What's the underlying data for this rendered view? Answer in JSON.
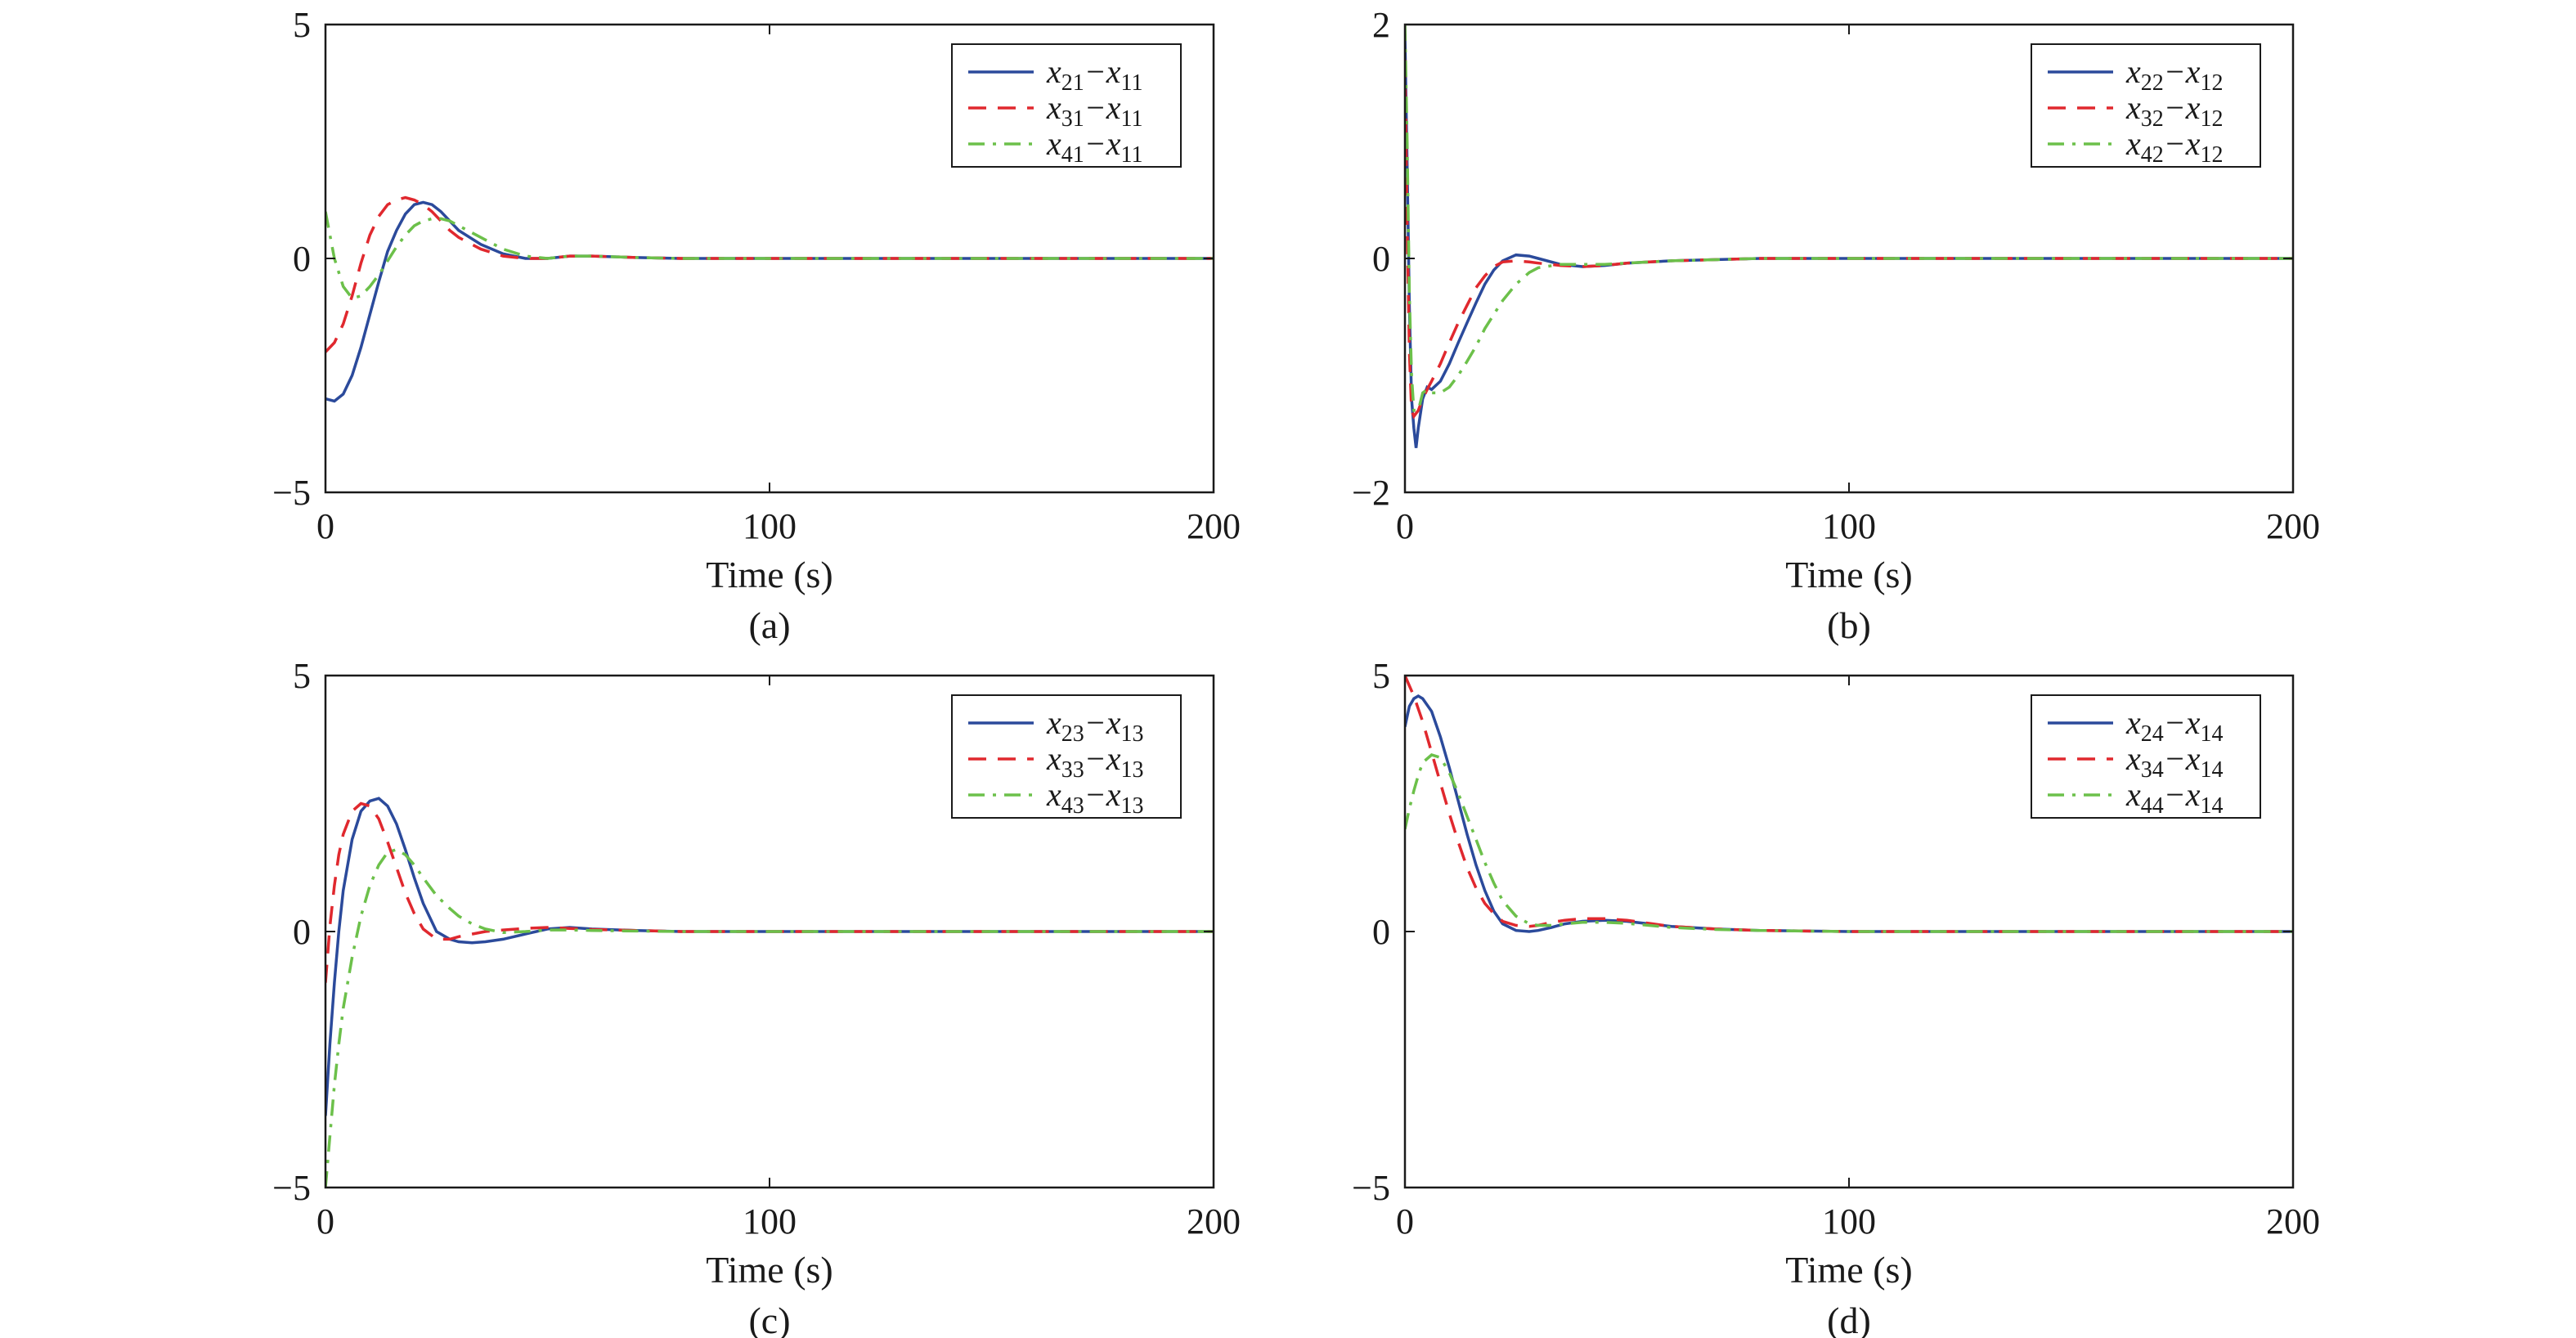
{
  "chart_data": [
    {
      "type": "line",
      "caption": "(a)",
      "xlabel": "Time (s)",
      "ylabel": "",
      "xlim": [
        0,
        200
      ],
      "ylim": [
        -5,
        5
      ],
      "xticks": [
        "0",
        "100",
        "200"
      ],
      "yticks": [
        "−5",
        "0",
        "5"
      ],
      "legend_position": "top-right",
      "grid": false,
      "series": [
        {
          "name": "x21−x11",
          "name_parts": [
            "x",
            "21",
            "−x",
            "11"
          ],
          "color": "#2b4a9b",
          "dash": "solid",
          "x": [
            0,
            2,
            4,
            6,
            8,
            10,
            12,
            14,
            16,
            18,
            20,
            22,
            24,
            26,
            28,
            30,
            35,
            40,
            45,
            50,
            55,
            60,
            70,
            80,
            100,
            150,
            200
          ],
          "y": [
            -3.0,
            -3.05,
            -2.9,
            -2.5,
            -1.9,
            -1.2,
            -0.5,
            0.15,
            0.6,
            0.95,
            1.15,
            1.2,
            1.15,
            1.0,
            0.8,
            0.6,
            0.3,
            0.1,
            0.0,
            0.0,
            0.05,
            0.05,
            0.02,
            0.0,
            0.0,
            0.0,
            0.0
          ]
        },
        {
          "name": "x31−x11",
          "name_parts": [
            "x",
            "31",
            "−x",
            "11"
          ],
          "color": "#e0282e",
          "dash": "dashed",
          "x": [
            0,
            2,
            4,
            6,
            8,
            10,
            12,
            14,
            16,
            18,
            20,
            22,
            24,
            26,
            28,
            30,
            35,
            40,
            45,
            50,
            55,
            60,
            70,
            80,
            100,
            150,
            200
          ],
          "y": [
            -2.0,
            -1.8,
            -1.4,
            -0.8,
            -0.1,
            0.5,
            0.9,
            1.15,
            1.25,
            1.3,
            1.25,
            1.15,
            1.0,
            0.8,
            0.6,
            0.45,
            0.2,
            0.05,
            0.0,
            0.0,
            0.05,
            0.05,
            0.02,
            0.0,
            0.0,
            0.0,
            0.0
          ]
        },
        {
          "name": "x41−x11",
          "name_parts": [
            "x",
            "41",
            "−x",
            "11"
          ],
          "color": "#6cc04a",
          "dash": "dashdot",
          "x": [
            0,
            2,
            4,
            6,
            8,
            10,
            12,
            14,
            16,
            18,
            20,
            22,
            24,
            26,
            28,
            30,
            35,
            40,
            45,
            50,
            55,
            60,
            70,
            80,
            100,
            150,
            200
          ],
          "y": [
            1.0,
            0.0,
            -0.6,
            -0.85,
            -0.8,
            -0.6,
            -0.35,
            -0.05,
            0.25,
            0.5,
            0.7,
            0.8,
            0.85,
            0.85,
            0.8,
            0.7,
            0.45,
            0.2,
            0.05,
            0.0,
            0.05,
            0.05,
            0.02,
            0.0,
            0.0,
            0.0,
            0.0
          ]
        }
      ]
    },
    {
      "type": "line",
      "caption": "(b)",
      "xlabel": "Time (s)",
      "ylabel": "",
      "xlim": [
        0,
        200
      ],
      "ylim": [
        -2,
        2
      ],
      "xticks": [
        "0",
        "100",
        "200"
      ],
      "yticks": [
        "−2",
        "0",
        "2"
      ],
      "legend_position": "top-right",
      "grid": false,
      "series": [
        {
          "name": "x22−x12",
          "name_parts": [
            "x",
            "22",
            "−x",
            "12"
          ],
          "color": "#2b4a9b",
          "dash": "solid",
          "x": [
            0,
            0.5,
            1,
            1.5,
            2,
            2.5,
            3,
            4,
            5,
            6,
            8,
            10,
            12,
            14,
            16,
            18,
            20,
            22,
            25,
            28,
            30,
            35,
            40,
            45,
            50,
            60,
            80,
            100,
            150,
            200
          ],
          "y": [
            1.9,
            0.8,
            -0.4,
            -1.2,
            -1.45,
            -1.62,
            -1.45,
            -1.2,
            -1.1,
            -1.12,
            -1.05,
            -0.9,
            -0.72,
            -0.55,
            -0.38,
            -0.22,
            -0.1,
            -0.02,
            0.03,
            0.02,
            0.0,
            -0.05,
            -0.07,
            -0.06,
            -0.04,
            -0.02,
            0.0,
            0.0,
            0.0,
            0.0
          ]
        },
        {
          "name": "x32−x12",
          "name_parts": [
            "x",
            "32",
            "−x",
            "12"
          ],
          "color": "#e0282e",
          "dash": "dashed",
          "x": [
            0,
            0.5,
            1,
            1.5,
            2,
            3,
            4,
            5,
            6,
            8,
            10,
            12,
            14,
            16,
            18,
            20,
            22,
            25,
            28,
            30,
            35,
            40,
            45,
            50,
            60,
            80,
            100,
            150,
            200
          ],
          "y": [
            1.7,
            0.3,
            -0.8,
            -1.3,
            -1.35,
            -1.3,
            -1.2,
            -1.12,
            -1.05,
            -0.9,
            -0.72,
            -0.55,
            -0.4,
            -0.25,
            -0.15,
            -0.07,
            -0.03,
            -0.02,
            -0.03,
            -0.04,
            -0.06,
            -0.07,
            -0.06,
            -0.04,
            -0.02,
            0.0,
            0.0,
            0.0,
            0.0
          ]
        },
        {
          "name": "x42−x12",
          "name_parts": [
            "x",
            "42",
            "−x",
            "12"
          ],
          "color": "#6cc04a",
          "dash": "dashdot",
          "x": [
            0,
            0.5,
            1,
            1.5,
            2,
            3,
            4,
            5,
            6,
            8,
            10,
            12,
            14,
            16,
            18,
            20,
            22,
            25,
            28,
            30,
            35,
            40,
            45,
            50,
            60,
            80,
            100,
            150,
            200
          ],
          "y": [
            2.0,
            1.0,
            -0.3,
            -1.0,
            -1.3,
            -1.3,
            -1.15,
            -1.12,
            -1.15,
            -1.15,
            -1.1,
            -1.0,
            -0.88,
            -0.75,
            -0.6,
            -0.48,
            -0.36,
            -0.22,
            -0.12,
            -0.08,
            -0.05,
            -0.05,
            -0.05,
            -0.04,
            -0.02,
            0.0,
            0.0,
            0.0,
            0.0
          ]
        }
      ]
    },
    {
      "type": "line",
      "caption": "(c)",
      "xlabel": "Time (s)",
      "ylabel": "",
      "xlim": [
        0,
        200
      ],
      "ylim": [
        -5,
        5
      ],
      "xticks": [
        "0",
        "100",
        "200"
      ],
      "yticks": [
        "−5",
        "0",
        "5"
      ],
      "legend_position": "top-right",
      "grid": false,
      "series": [
        {
          "name": "x23−x13",
          "name_parts": [
            "x",
            "23",
            "−x",
            "13"
          ],
          "color": "#2b4a9b",
          "dash": "solid",
          "x": [
            0,
            1,
            2,
            3,
            4,
            6,
            8,
            10,
            12,
            14,
            16,
            18,
            20,
            22,
            25,
            28,
            30,
            33,
            36,
            40,
            45,
            50,
            55,
            60,
            70,
            80,
            100,
            150,
            200
          ],
          "y": [
            -3.6,
            -2.2,
            -1.0,
            0.0,
            0.8,
            1.8,
            2.35,
            2.55,
            2.6,
            2.45,
            2.1,
            1.6,
            1.05,
            0.55,
            0.0,
            -0.15,
            -0.2,
            -0.22,
            -0.2,
            -0.15,
            -0.05,
            0.05,
            0.08,
            0.05,
            0.02,
            0.0,
            0.0,
            0.0,
            0.0
          ]
        },
        {
          "name": "x33−x13",
          "name_parts": [
            "x",
            "33",
            "−x",
            "13"
          ],
          "color": "#e0282e",
          "dash": "dashed",
          "x": [
            0,
            1,
            2,
            3,
            4,
            6,
            8,
            10,
            12,
            14,
            16,
            18,
            20,
            22,
            25,
            28,
            30,
            33,
            36,
            40,
            45,
            50,
            55,
            60,
            70,
            80,
            100,
            150,
            200
          ],
          "y": [
            -1.0,
            0.1,
            0.9,
            1.5,
            1.9,
            2.35,
            2.5,
            2.45,
            2.2,
            1.75,
            1.25,
            0.75,
            0.35,
            0.05,
            -0.15,
            -0.15,
            -0.1,
            -0.05,
            0.0,
            0.03,
            0.06,
            0.08,
            0.06,
            0.04,
            0.02,
            0.0,
            0.0,
            0.0,
            0.0
          ]
        },
        {
          "name": "x43−x13",
          "name_parts": [
            "x",
            "43",
            "−x",
            "13"
          ],
          "color": "#6cc04a",
          "dash": "dashdot",
          "x": [
            0,
            1,
            2,
            3,
            4,
            6,
            8,
            10,
            12,
            14,
            16,
            18,
            20,
            22,
            25,
            28,
            30,
            33,
            36,
            40,
            45,
            50,
            55,
            60,
            70,
            80,
            100,
            150,
            200
          ],
          "y": [
            -5.0,
            -4.0,
            -3.0,
            -2.2,
            -1.5,
            -0.5,
            0.3,
            0.9,
            1.3,
            1.55,
            1.6,
            1.5,
            1.3,
            1.05,
            0.7,
            0.45,
            0.3,
            0.15,
            0.05,
            -0.02,
            0.0,
            0.03,
            0.03,
            0.02,
            0.01,
            0.0,
            0.0,
            0.0,
            0.0
          ]
        }
      ]
    },
    {
      "type": "line",
      "caption": "(d)",
      "xlabel": "Time (s)",
      "ylabel": "",
      "xlim": [
        0,
        200
      ],
      "ylim": [
        -5,
        5
      ],
      "xticks": [
        "0",
        "100",
        "200"
      ],
      "yticks": [
        "−5",
        "0",
        "5"
      ],
      "legend_position": "top-right",
      "grid": false,
      "series": [
        {
          "name": "x24−x14",
          "name_parts": [
            "x",
            "24",
            "−x",
            "14"
          ],
          "color": "#2b4a9b",
          "dash": "solid",
          "x": [
            0,
            1,
            2,
            3,
            4,
            6,
            8,
            10,
            12,
            14,
            16,
            18,
            20,
            22,
            25,
            28,
            30,
            33,
            36,
            40,
            45,
            50,
            55,
            60,
            70,
            80,
            100,
            150,
            200
          ],
          "y": [
            4.0,
            4.4,
            4.55,
            4.6,
            4.55,
            4.3,
            3.8,
            3.2,
            2.55,
            1.9,
            1.3,
            0.8,
            0.4,
            0.15,
            0.02,
            0.0,
            0.02,
            0.08,
            0.15,
            0.2,
            0.22,
            0.2,
            0.15,
            0.1,
            0.05,
            0.02,
            0.0,
            0.0,
            0.0
          ]
        },
        {
          "name": "x34−x14",
          "name_parts": [
            "x",
            "34",
            "−x",
            "14"
          ],
          "color": "#e0282e",
          "dash": "dashed",
          "x": [
            0,
            1,
            2,
            3,
            4,
            6,
            8,
            10,
            12,
            14,
            16,
            18,
            20,
            22,
            25,
            28,
            30,
            33,
            36,
            40,
            45,
            50,
            55,
            60,
            70,
            80,
            100,
            150,
            200
          ],
          "y": [
            5.0,
            4.8,
            4.6,
            4.35,
            4.1,
            3.5,
            2.9,
            2.3,
            1.75,
            1.25,
            0.85,
            0.55,
            0.35,
            0.2,
            0.12,
            0.1,
            0.12,
            0.18,
            0.22,
            0.25,
            0.25,
            0.22,
            0.16,
            0.1,
            0.05,
            0.02,
            0.0,
            0.0,
            0.0
          ]
        },
        {
          "name": "x44−x14",
          "name_parts": [
            "x",
            "44",
            "−x",
            "14"
          ],
          "color": "#6cc04a",
          "dash": "dashdot",
          "x": [
            0,
            1,
            2,
            3,
            4,
            6,
            8,
            10,
            12,
            14,
            16,
            18,
            20,
            22,
            25,
            28,
            30,
            33,
            36,
            40,
            45,
            50,
            55,
            60,
            70,
            80,
            100,
            150,
            200
          ],
          "y": [
            2.0,
            2.4,
            2.75,
            3.05,
            3.3,
            3.45,
            3.4,
            3.1,
            2.7,
            2.25,
            1.8,
            1.35,
            0.95,
            0.6,
            0.3,
            0.15,
            0.12,
            0.12,
            0.15,
            0.18,
            0.18,
            0.16,
            0.12,
            0.08,
            0.04,
            0.02,
            0.0,
            0.0,
            0.0
          ]
        }
      ]
    }
  ]
}
